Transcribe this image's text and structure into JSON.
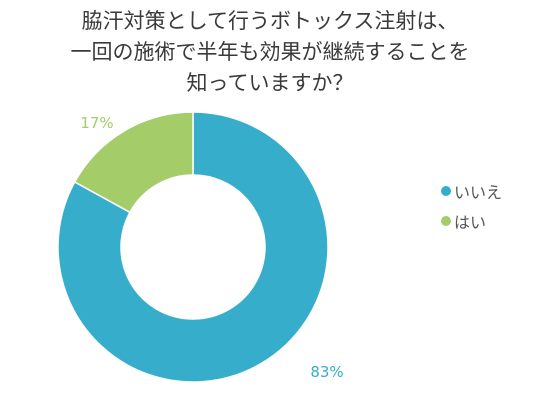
{
  "title_lines": [
    "脇汗対策として行うボトックス注射は、",
    "一回の施術で半年も効果が継続することを",
    "知っていますか？"
  ],
  "chart_data": {
    "type": "pie",
    "donut": true,
    "categories": [
      "いいえ",
      "はい"
    ],
    "values": [
      83,
      17
    ],
    "value_labels": [
      "83%",
      "17%"
    ],
    "colors": [
      "#36aecb",
      "#a4cd6a"
    ],
    "legend_position": "right",
    "title": "脇汗対策として行うボトックス注射は、一回の施術で半年も効果が継続することを知っていますか？"
  }
}
